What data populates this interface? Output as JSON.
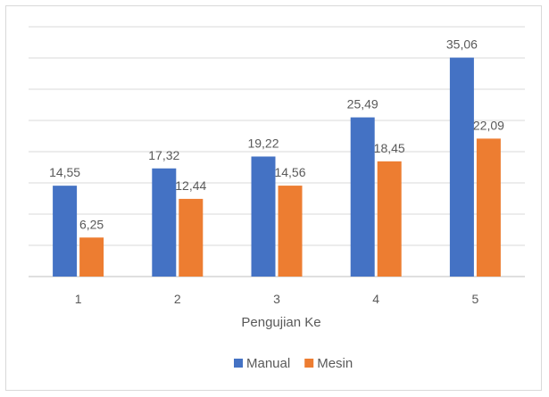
{
  "chart_data": {
    "type": "bar",
    "categories": [
      "1",
      "2",
      "3",
      "4",
      "5"
    ],
    "series": [
      {
        "name": "Manual",
        "values": [
          14.55,
          17.32,
          19.22,
          25.49,
          35.06
        ],
        "labels": [
          "14,55",
          "17,32",
          "19,22",
          "25,49",
          "35,06"
        ],
        "color": "#4472c4"
      },
      {
        "name": "Mesin",
        "values": [
          6.25,
          12.44,
          14.56,
          18.45,
          22.09
        ],
        "labels": [
          "6,25",
          "12,44",
          "14,56",
          "18,45",
          "22,09"
        ],
        "color": "#ed7d31"
      }
    ],
    "title": "",
    "xlabel": "Pengujian Ke",
    "ylabel": "",
    "ylim": [
      0,
      40
    ],
    "grid": true,
    "legend_position": "bottom"
  }
}
